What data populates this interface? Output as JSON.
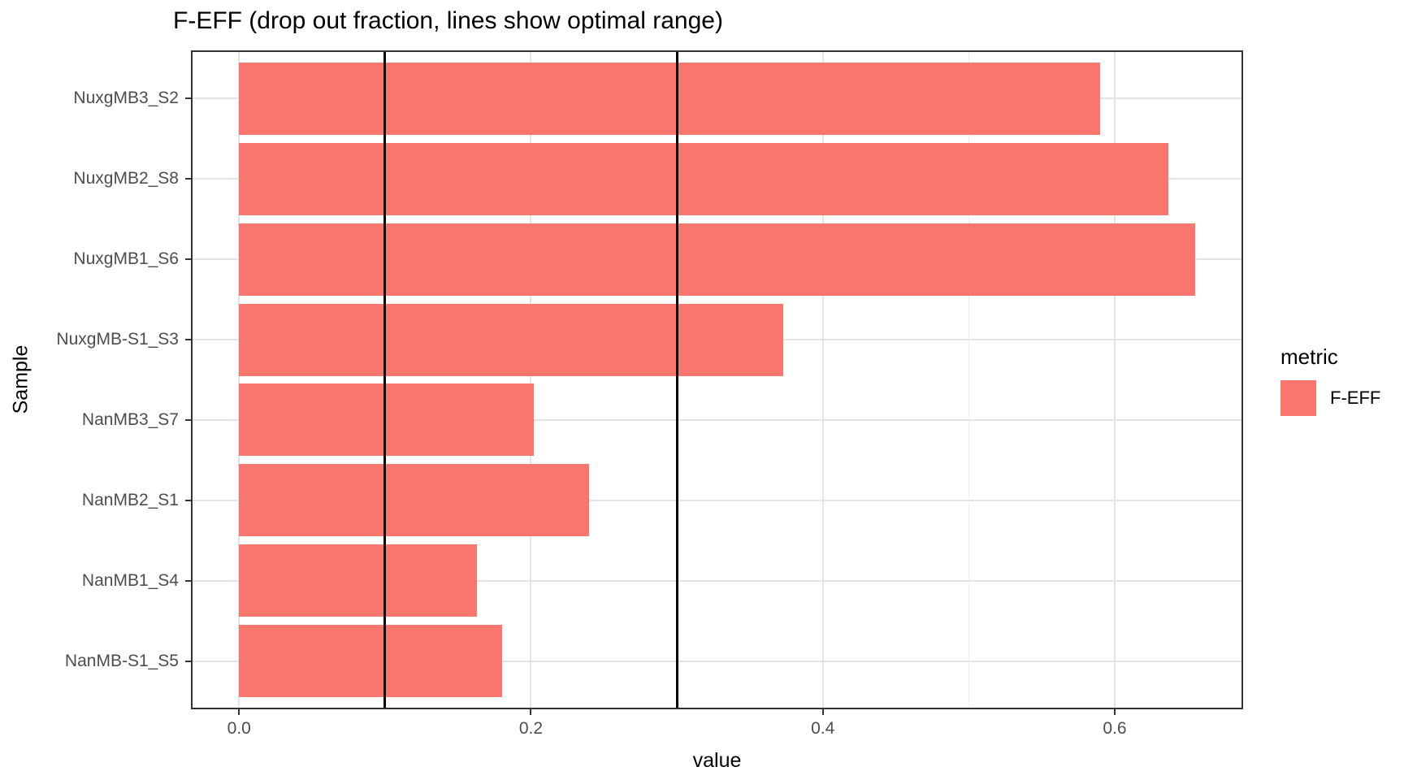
{
  "chart_data": {
    "type": "bar",
    "orientation": "horizontal",
    "title": "F-EFF (drop out fraction, lines show optimal range)",
    "xlabel": "value",
    "ylabel": "Sample",
    "categories": [
      "NuxgMB3_S2",
      "NuxgMB2_S8",
      "NuxgMB1_S6",
      "NuxgMB-S1_S3",
      "NanMB3_S7",
      "NanMB2_S1",
      "NanMB1_S4",
      "NanMB-S1_S5"
    ],
    "series": [
      {
        "name": "F-EFF",
        "values": [
          0.59,
          0.637,
          0.655,
          0.373,
          0.202,
          0.24,
          0.163,
          0.18
        ]
      }
    ],
    "x_ticks": [
      0.0,
      0.2,
      0.4,
      0.6
    ],
    "x_tick_labels": [
      "0.0",
      "0.2",
      "0.4",
      "0.6"
    ],
    "x_minor_ticks": [
      0.1,
      0.3,
      0.5
    ],
    "xlim": [
      -0.033,
      0.688
    ],
    "reference_lines": [
      0.1,
      0.3
    ],
    "grid": true,
    "legend": {
      "title": "metric",
      "position": "right",
      "entries": [
        {
          "label": "F-EFF",
          "color": "#F8766D"
        }
      ]
    },
    "colors": {
      "bar": "#F8766D",
      "reference_line": "#000000",
      "grid_major": "#e4e4e4",
      "grid_minor": "#ededed",
      "panel_border": "#333333",
      "axis_text": "#4d4d4d",
      "title_text": "#000000"
    }
  }
}
